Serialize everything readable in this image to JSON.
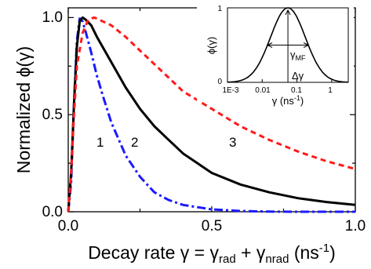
{
  "chart_data": {
    "type": "line",
    "xlabel": {
      "main": "Decay rate γ = γ",
      "sub1": "rad",
      "plus": " + γ",
      "sub2": "nrad",
      "unit": " (ns",
      "exp": "-1",
      "close": ")"
    },
    "ylabel": "Normalized ϕ(γ)",
    "xlim": [
      0,
      1.0
    ],
    "ylim": [
      0,
      1.05
    ],
    "x_ticks": [
      "0.0",
      "0.5",
      "1.0"
    ],
    "y_ticks": [
      "0.0",
      "0.5",
      "1.0"
    ],
    "grid": false,
    "series": [
      {
        "name": "1",
        "color": "#1a1aff",
        "style": "dash-dot",
        "x": [
          0.0,
          0.01,
          0.02,
          0.03,
          0.04,
          0.05,
          0.06,
          0.08,
          0.1,
          0.12,
          0.15,
          0.2,
          0.25,
          0.3,
          0.35,
          0.4,
          0.5,
          0.6,
          0.7,
          0.8,
          0.9,
          1.0
        ],
        "y": [
          0.0,
          0.15,
          0.55,
          0.88,
          0.995,
          0.98,
          0.93,
          0.82,
          0.7,
          0.6,
          0.46,
          0.29,
          0.18,
          0.1,
          0.06,
          0.035,
          0.012,
          0.004,
          0.001,
          0.0,
          0.0,
          0.0
        ]
      },
      {
        "name": "2",
        "color": "#000000",
        "style": "solid",
        "x": [
          0.0,
          0.01,
          0.02,
          0.03,
          0.04,
          0.05,
          0.06,
          0.08,
          0.1,
          0.15,
          0.2,
          0.25,
          0.3,
          0.35,
          0.4,
          0.5,
          0.6,
          0.7,
          0.8,
          0.9,
          1.0
        ],
        "y": [
          0.0,
          0.2,
          0.55,
          0.85,
          0.98,
          1.0,
          0.99,
          0.96,
          0.9,
          0.77,
          0.64,
          0.53,
          0.44,
          0.37,
          0.3,
          0.2,
          0.14,
          0.1,
          0.07,
          0.05,
          0.035
        ]
      },
      {
        "name": "3",
        "color": "#ff1a1a",
        "style": "dashed",
        "x": [
          0.0,
          0.01,
          0.02,
          0.03,
          0.05,
          0.07,
          0.09,
          0.1,
          0.12,
          0.15,
          0.2,
          0.25,
          0.3,
          0.35,
          0.4,
          0.5,
          0.6,
          0.7,
          0.8,
          0.9,
          1.0
        ],
        "y": [
          0.0,
          0.2,
          0.5,
          0.75,
          0.92,
          0.99,
          1.0,
          0.995,
          0.98,
          0.96,
          0.9,
          0.83,
          0.76,
          0.69,
          0.62,
          0.53,
          0.44,
          0.37,
          0.31,
          0.26,
          0.22
        ]
      }
    ],
    "inset": {
      "type": "line",
      "xlabel": {
        "main": "γ (ns",
        "exp": "-1",
        "close": ")"
      },
      "ylabel": "ϕ(γ)",
      "x_log": true,
      "xlim": [
        0.001,
        3
      ],
      "ylim": [
        0,
        1
      ],
      "x_ticks": [
        {
          "value": 0.001,
          "label": "1E-3"
        },
        {
          "value": 0.01,
          "label": "0.01"
        },
        {
          "value": 0.1,
          "label": "0.1"
        },
        {
          "value": 1,
          "label": "1"
        }
      ],
      "y_ticks": [
        {
          "value": 0,
          "label": "0"
        },
        {
          "value": 1,
          "label": "1"
        }
      ],
      "peak_x": 0.055,
      "log_sigma": 0.5,
      "annotations": {
        "gamma_mf": {
          "main": "γ",
          "sub": "MF"
        },
        "delta_gamma": "Δγ"
      }
    }
  }
}
